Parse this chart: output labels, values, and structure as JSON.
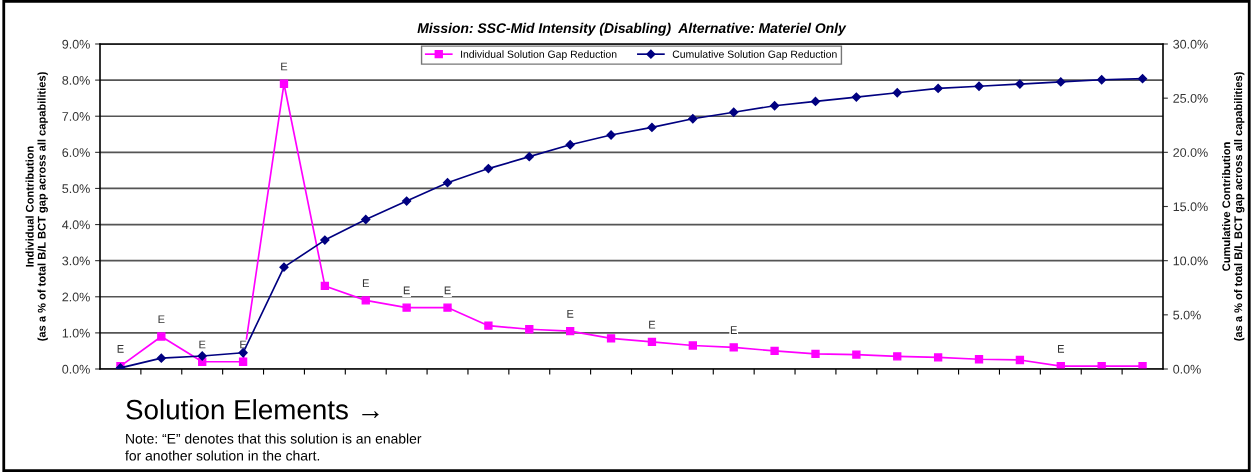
{
  "chart_data": {
    "type": "line",
    "title": "Mission: SSC-Mid Intensity (Disabling)  Alternative: Materiel Only",
    "ylabel": "Individual Contribution\n(as a % of total B/L BCT gap across all capabilities)",
    "y2label": "Cumulative Contribution\n(as a % of total B/L BCT gap across all capabilities)",
    "categories": [
      null,
      null,
      null,
      null,
      null,
      null,
      null,
      null,
      null,
      null,
      null,
      null,
      null,
      null,
      null,
      null,
      null,
      null,
      null,
      null,
      null,
      null,
      null,
      null,
      null,
      null
    ],
    "series": [
      {
        "name": "Individual Solution Gap Reduction",
        "color": "#ff00ff",
        "marker": "square",
        "values": [
          0.08,
          0.9,
          0.2,
          0.2,
          7.9,
          2.3,
          1.9,
          1.7,
          1.7,
          1.2,
          1.1,
          1.05,
          0.85,
          0.75,
          0.65,
          0.6,
          0.5,
          0.42,
          0.4,
          0.35,
          0.32,
          0.27,
          0.25,
          0.08,
          0.08,
          0.08
        ],
        "value_labels": [
          "E",
          "E",
          "E",
          "E",
          "E",
          null,
          "E",
          "E",
          "E",
          null,
          null,
          "E",
          null,
          "E",
          null,
          "E",
          null,
          null,
          null,
          null,
          null,
          null,
          null,
          "E",
          null,
          null
        ]
      },
      {
        "name": "Cumulative Solution Gap Reduction",
        "color": "#000080",
        "marker": "diamond",
        "axis": "y2",
        "values": [
          0.1,
          1.0,
          1.2,
          1.5,
          9.4,
          11.9,
          13.8,
          15.5,
          17.2,
          18.5,
          19.6,
          20.7,
          21.6,
          22.3,
          23.1,
          23.7,
          24.3,
          24.7,
          25.1,
          25.5,
          25.9,
          26.1,
          26.3,
          26.5,
          26.7,
          26.8
        ]
      }
    ],
    "ylim": [
      0,
      9
    ],
    "yticks": [
      {
        "value": 0,
        "label": "0.0%"
      },
      {
        "value": 1,
        "label": "1.0%"
      },
      {
        "value": 2,
        "label": "2.0%"
      },
      {
        "value": 3,
        "label": "3.0%"
      },
      {
        "value": 4,
        "label": "4.0%"
      },
      {
        "value": 5,
        "label": "5.0%"
      },
      {
        "value": 6,
        "label": "6.0%"
      },
      {
        "value": 7,
        "label": "7.0%"
      },
      {
        "value": 8,
        "label": "8.0%"
      },
      {
        "value": 9,
        "label": "9.0%"
      }
    ],
    "y2lim": [
      0,
      30
    ],
    "y2ticks": [
      {
        "value": 0,
        "label": "0.0%"
      },
      {
        "value": 5,
        "label": "5.0%"
      },
      {
        "value": 10,
        "label": "10.0%"
      },
      {
        "value": 15,
        "label": "15.0%"
      },
      {
        "value": 20,
        "label": "20.0%"
      },
      {
        "value": 25,
        "label": "25.0%"
      },
      {
        "value": 30,
        "label": "30.0%"
      }
    ],
    "grid": "y",
    "legend": "top",
    "tick_labels": "y",
    "line_style": "solid",
    "annotations": [
      "Solution Elements →",
      "Note: “E” denotes that this solution is an enabler\nfor another solution in the chart."
    ]
  }
}
